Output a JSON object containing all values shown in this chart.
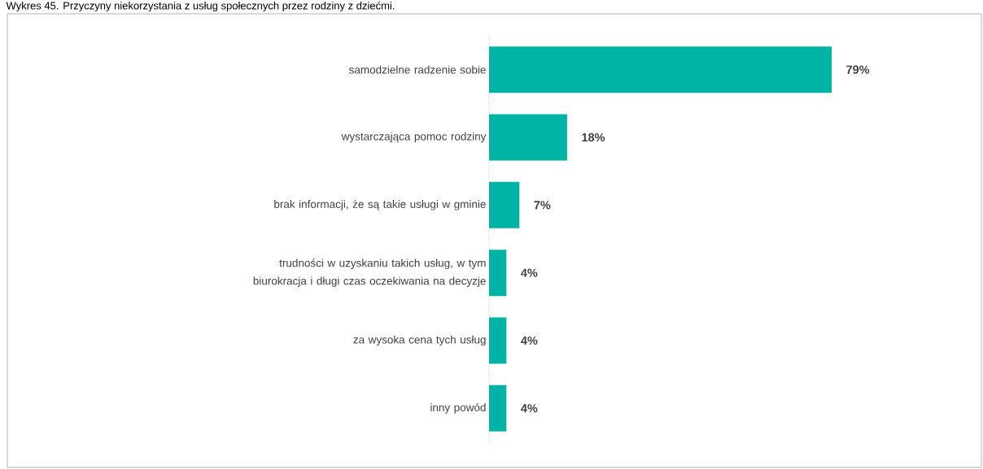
{
  "chart_data": {
    "type": "bar",
    "orientation": "horizontal",
    "title": "Wykres 45. Przyczyny niekorzystania z usług społecznych przez rodziny z dziećmi.",
    "categories": [
      "samodzielne radzenie sobie",
      "wystarczająca pomoc rodziny",
      "brak informacji, że są takie usługi w gminie",
      "trudności w uzyskaniu takich usług, w tym biurokracja i długi czas oczekiwania na decyzje",
      "za wysoka cena tych usług",
      "inny powód"
    ],
    "values": [
      79,
      18,
      7,
      4,
      4,
      4
    ],
    "value_labels": [
      "79%",
      "18%",
      "7%",
      "4%",
      "4%",
      "4%"
    ],
    "color": "#00b4a5"
  }
}
